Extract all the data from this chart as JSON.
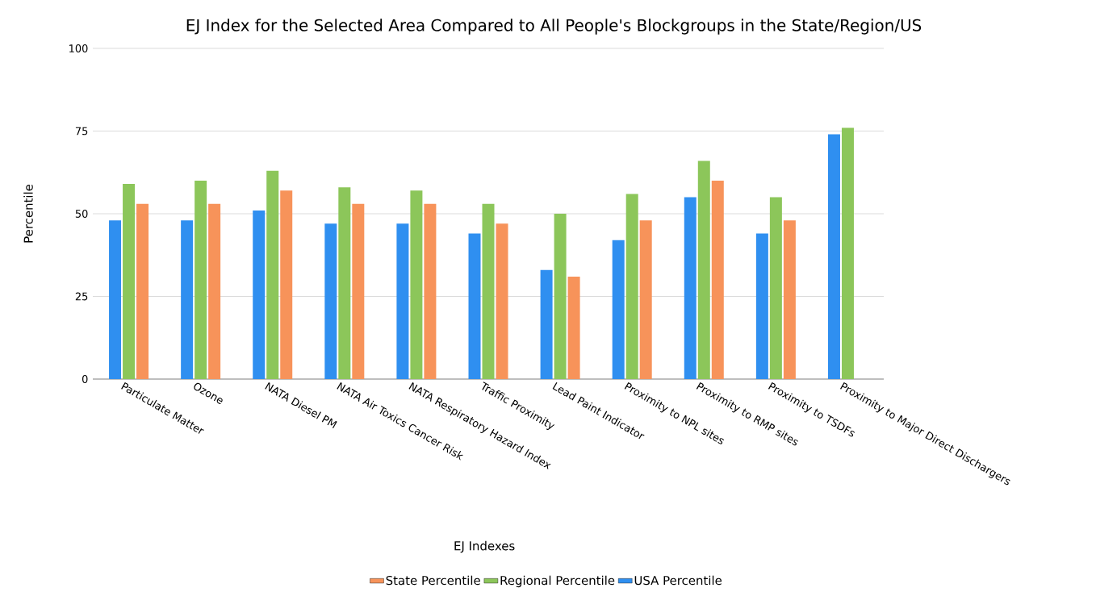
{
  "chart_data": {
    "type": "bar",
    "title": "EJ Index for the Selected Area Compared to All People's Blockgroups in the State/Region/US",
    "xlabel": "EJ Indexes",
    "ylabel": "Percentile",
    "categories": [
      "Particulate Matter",
      "Ozone",
      "NATA Diesel PM",
      "NATA Air Toxics Cancer Risk",
      "NATA Respiratory Hazard Index",
      "Traffic Proximity",
      "Lead Paint Indicator",
      "Proximity to NPL sites",
      "Proximity to RMP sites",
      "Proximity to TSDFs",
      "Proximity to Major Direct Dischargers"
    ],
    "series": [
      {
        "name": "USA Percentile",
        "color": "#2f8ff0",
        "values": [
          48,
          48,
          51,
          47,
          47,
          44,
          33,
          42,
          55,
          44,
          74
        ]
      },
      {
        "name": "Regional Percentile",
        "color": "#8cc65a",
        "values": [
          59,
          60,
          63,
          58,
          57,
          53,
          50,
          56,
          66,
          55,
          76
        ]
      },
      {
        "name": "State Percentile",
        "color": "#f7935a",
        "values": [
          53,
          53,
          57,
          53,
          53,
          47,
          31,
          48,
          60,
          48,
          null
        ]
      }
    ],
    "ylim": [
      0,
      100
    ],
    "yticks": [
      0,
      25,
      50,
      75,
      100
    ],
    "grid": "y",
    "legend": "bottom"
  }
}
